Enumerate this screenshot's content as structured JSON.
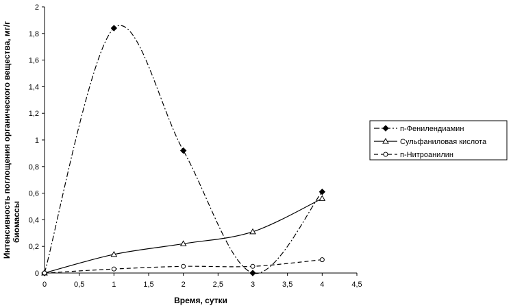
{
  "chart_data": {
    "type": "line",
    "title": "",
    "xlabel": "Время, сутки",
    "ylabel_lines": [
      "Интенсивность поглощения органического вещества, мг/г",
      "биомассы"
    ],
    "xlim": [
      0,
      4.5
    ],
    "ylim": [
      0,
      2
    ],
    "x_ticks": [
      0,
      0.5,
      1,
      1.5,
      2,
      2.5,
      3,
      3.5,
      4,
      4.5
    ],
    "x_tick_labels": [
      "0",
      "0,5",
      "1",
      "1,5",
      "2",
      "2,5",
      "3",
      "3,5",
      "4",
      "4,5"
    ],
    "y_ticks": [
      0,
      0.2,
      0.4,
      0.6,
      0.8,
      1,
      1.2,
      1.4,
      1.6,
      1.8,
      2
    ],
    "y_tick_labels": [
      "0",
      "0,2",
      "0,4",
      "0,6",
      "0,8",
      "1",
      "1,2",
      "1,4",
      "1,6",
      "1,8",
      "2"
    ],
    "grid": false,
    "legend_position": "right",
    "series": [
      {
        "name": "п-Фенилендиамин",
        "marker": "diamond",
        "dash": "dashdot",
        "x": [
          0,
          1,
          2,
          3,
          4
        ],
        "y": [
          0,
          1.84,
          0.92,
          0,
          0.61
        ]
      },
      {
        "name": "Сульфаниловая кислота",
        "marker": "triangle",
        "dash": "solid",
        "x": [
          0,
          1,
          2,
          3,
          4
        ],
        "y": [
          0,
          0.14,
          0.22,
          0.31,
          0.56
        ]
      },
      {
        "name": "п-Нитроанилин",
        "marker": "circle",
        "dash": "dashed",
        "x": [
          0,
          1,
          2,
          3,
          4
        ],
        "y": [
          0,
          0.03,
          0.05,
          0.05,
          0.1
        ]
      }
    ]
  }
}
